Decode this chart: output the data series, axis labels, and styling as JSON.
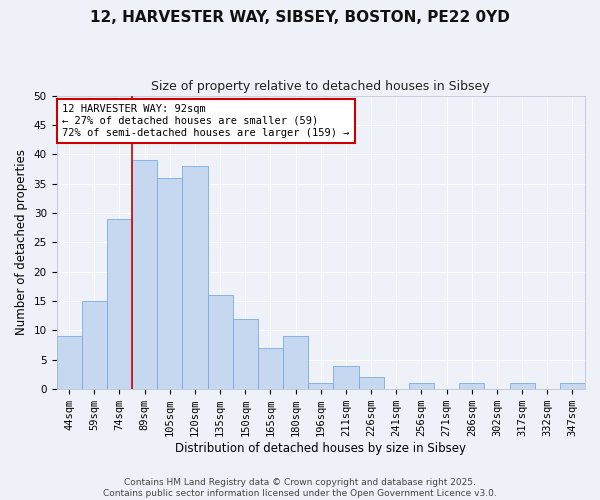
{
  "title": "12, HARVESTER WAY, SIBSEY, BOSTON, PE22 0YD",
  "subtitle": "Size of property relative to detached houses in Sibsey",
  "xlabel": "Distribution of detached houses by size in Sibsey",
  "ylabel": "Number of detached properties",
  "bin_labels": [
    "44sqm",
    "59sqm",
    "74sqm",
    "89sqm",
    "105sqm",
    "120sqm",
    "135sqm",
    "150sqm",
    "165sqm",
    "180sqm",
    "196sqm",
    "211sqm",
    "226sqm",
    "241sqm",
    "256sqm",
    "271sqm",
    "286sqm",
    "302sqm",
    "317sqm",
    "332sqm",
    "347sqm"
  ],
  "bar_heights": [
    9,
    15,
    29,
    39,
    36,
    38,
    16,
    12,
    7,
    9,
    1,
    4,
    2,
    0,
    1,
    0,
    1,
    0,
    1,
    0,
    1
  ],
  "bar_color": "#c5d8f0",
  "bar_edge_color": "#7aabe0",
  "vline_color": "#cc0000",
  "vline_x_index": 3,
  "ylim": [
    0,
    50
  ],
  "yticks": [
    0,
    5,
    10,
    15,
    20,
    25,
    30,
    35,
    40,
    45,
    50
  ],
  "annotation_title": "12 HARVESTER WAY: 92sqm",
  "annotation_line2": "← 27% of detached houses are smaller (59)",
  "annotation_line3": "72% of semi-detached houses are larger (159) →",
  "annotation_box_color": "#cc0000",
  "footer_line1": "Contains HM Land Registry data © Crown copyright and database right 2025.",
  "footer_line2": "Contains public sector information licensed under the Open Government Licence v3.0.",
  "bg_color": "#eef2f8",
  "grid_color": "#ffffff",
  "title_fontsize": 11,
  "subtitle_fontsize": 9,
  "axis_label_fontsize": 8.5,
  "tick_fontsize": 7.5,
  "annotation_fontsize": 7.5,
  "footer_fontsize": 6.5
}
